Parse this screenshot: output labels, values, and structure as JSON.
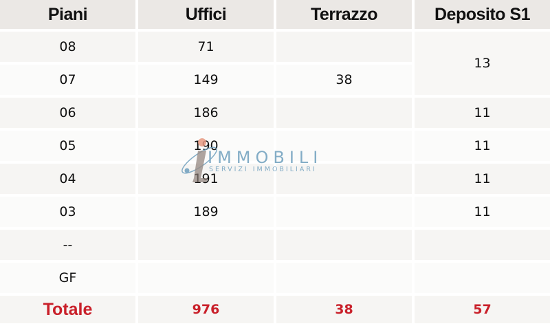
{
  "table": {
    "headers": [
      "Piani",
      "Uffici",
      "Terrazzo",
      "Deposito S1"
    ],
    "rows": [
      {
        "piano": "08",
        "uffici": "71",
        "terrazzo": "",
        "deposito": "13"
      },
      {
        "piano": "07",
        "uffici": "149",
        "terrazzo": "38",
        "deposito": ""
      },
      {
        "piano": "06",
        "uffici": "186",
        "terrazzo": "",
        "deposito": "11"
      },
      {
        "piano": "05",
        "uffici": "190",
        "terrazzo": "",
        "deposito": "11"
      },
      {
        "piano": "04",
        "uffici": "191",
        "terrazzo": "",
        "deposito": "11"
      },
      {
        "piano": "03",
        "uffici": "189",
        "terrazzo": "",
        "deposito": "11"
      },
      {
        "piano": "--",
        "uffici": "",
        "terrazzo": "",
        "deposito": ""
      },
      {
        "piano": "GF",
        "uffici": "",
        "terrazzo": "",
        "deposito": ""
      }
    ],
    "total": {
      "label": "Totale",
      "uffici": "976",
      "terrazzo": "38",
      "deposito": "57"
    }
  },
  "watermark": {
    "brand": "IMMOBILI",
    "tagline": "SERVIZI IMMOBILIARI"
  },
  "colors": {
    "total_text": "#c9202a",
    "header_bg": "#ebe8e5",
    "watermark": "#6e9fbd"
  }
}
